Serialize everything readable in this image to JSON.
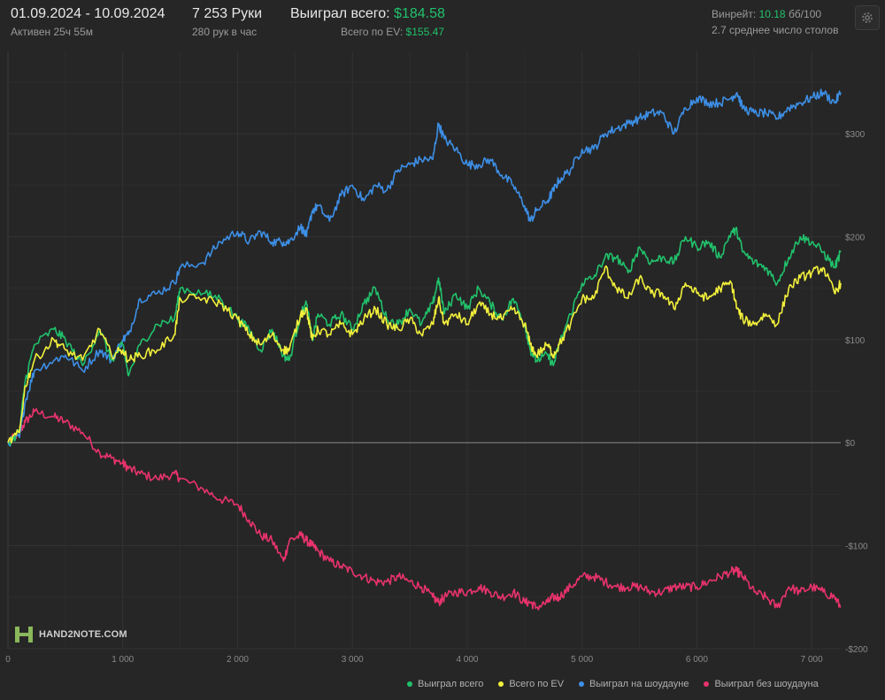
{
  "header": {
    "date_range": "01.09.2024 - 10.09.2024",
    "active_time": "Активен 25ч 55м",
    "hands": "7 253 Руки",
    "hands_per_hour": "280 рук в час",
    "won_label": "Выиграл всего:",
    "won_value": "$184.58",
    "ev_label": "Всего по EV:",
    "ev_value": "$155.47",
    "winrate_label": "Винрейт:",
    "winrate_value": "10.18",
    "winrate_unit": "бб/100",
    "tables": "2.7 среднее число столов"
  },
  "logo": {
    "text": "HAND2NOTE.COM",
    "icon": "h2n-logo-icon"
  },
  "settings_icon": "gear-icon",
  "colors": {
    "total": "#21c16b",
    "ev": "#f2f03b",
    "showdown": "#3d8fe6",
    "non_showdown": "#e8336c",
    "background": "#262626"
  },
  "chart_data": {
    "type": "line",
    "title": "",
    "xlabel": "",
    "ylabel": "",
    "xlim": [
      0,
      7253
    ],
    "ylim": [
      -200,
      380
    ],
    "grid": true,
    "legend_position": "bottom-right",
    "x_ticks": [
      0,
      1000,
      2000,
      3000,
      4000,
      5000,
      6000,
      7000
    ],
    "x_tick_labels": [
      "0",
      "1 000",
      "2 000",
      "3 000",
      "4 000",
      "5 000",
      "6 000",
      "7 000"
    ],
    "y_ticks": [
      300,
      200,
      100,
      0,
      -100,
      -200
    ],
    "y_tick_labels": [
      "$300",
      "$200",
      "$100",
      "$0",
      "-$100",
      "-$200"
    ],
    "series": [
      {
        "name": "Выиграл всего",
        "color": "#21c16b",
        "points": [
          [
            0,
            0
          ],
          [
            100,
            10
          ],
          [
            150,
            60
          ],
          [
            230,
            95
          ],
          [
            400,
            110
          ],
          [
            500,
            100
          ],
          [
            650,
            75
          ],
          [
            800,
            110
          ],
          [
            900,
            80
          ],
          [
            1000,
            95
          ],
          [
            1050,
            65
          ],
          [
            1150,
            95
          ],
          [
            1300,
            115
          ],
          [
            1450,
            120
          ],
          [
            1500,
            150
          ],
          [
            1700,
            145
          ],
          [
            1850,
            140
          ],
          [
            2000,
            120
          ],
          [
            2100,
            110
          ],
          [
            2200,
            90
          ],
          [
            2300,
            110
          ],
          [
            2400,
            85
          ],
          [
            2450,
            80
          ],
          [
            2550,
            125
          ],
          [
            2600,
            135
          ],
          [
            2650,
            100
          ],
          [
            2700,
            125
          ],
          [
            2800,
            115
          ],
          [
            2900,
            125
          ],
          [
            3000,
            110
          ],
          [
            3100,
            135
          ],
          [
            3200,
            150
          ],
          [
            3300,
            120
          ],
          [
            3400,
            115
          ],
          [
            3500,
            130
          ],
          [
            3600,
            115
          ],
          [
            3700,
            135
          ],
          [
            3750,
            160
          ],
          [
            3800,
            125
          ],
          [
            3900,
            145
          ],
          [
            4000,
            130
          ],
          [
            4100,
            150
          ],
          [
            4200,
            135
          ],
          [
            4300,
            120
          ],
          [
            4400,
            140
          ],
          [
            4500,
            115
          ],
          [
            4550,
            90
          ],
          [
            4600,
            80
          ],
          [
            4700,
            85
          ],
          [
            4750,
            75
          ],
          [
            4800,
            95
          ],
          [
            4900,
            125
          ],
          [
            5000,
            155
          ],
          [
            5100,
            160
          ],
          [
            5200,
            180
          ],
          [
            5300,
            180
          ],
          [
            5400,
            165
          ],
          [
            5500,
            190
          ],
          [
            5600,
            175
          ],
          [
            5700,
            180
          ],
          [
            5800,
            175
          ],
          [
            5900,
            200
          ],
          [
            6000,
            190
          ],
          [
            6100,
            195
          ],
          [
            6200,
            180
          ],
          [
            6300,
            205
          ],
          [
            6350,
            205
          ],
          [
            6400,
            185
          ],
          [
            6500,
            175
          ],
          [
            6600,
            170
          ],
          [
            6700,
            155
          ],
          [
            6800,
            180
          ],
          [
            6900,
            200
          ],
          [
            7000,
            195
          ],
          [
            7100,
            185
          ],
          [
            7200,
            170
          ],
          [
            7253,
            185
          ]
        ]
      },
      {
        "name": "Всего по EV",
        "color": "#f2f03b",
        "points": [
          [
            0,
            0
          ],
          [
            100,
            10
          ],
          [
            150,
            55
          ],
          [
            230,
            80
          ],
          [
            400,
            100
          ],
          [
            500,
            90
          ],
          [
            650,
            80
          ],
          [
            800,
            110
          ],
          [
            900,
            85
          ],
          [
            1000,
            90
          ],
          [
            1050,
            80
          ],
          [
            1150,
            85
          ],
          [
            1300,
            90
          ],
          [
            1450,
            105
          ],
          [
            1500,
            140
          ],
          [
            1700,
            140
          ],
          [
            1850,
            135
          ],
          [
            2000,
            120
          ],
          [
            2100,
            105
          ],
          [
            2200,
            95
          ],
          [
            2300,
            105
          ],
          [
            2400,
            90
          ],
          [
            2450,
            90
          ],
          [
            2550,
            125
          ],
          [
            2600,
            130
          ],
          [
            2650,
            100
          ],
          [
            2700,
            110
          ],
          [
            2800,
            105
          ],
          [
            2900,
            115
          ],
          [
            3000,
            105
          ],
          [
            3100,
            120
          ],
          [
            3200,
            130
          ],
          [
            3300,
            115
          ],
          [
            3400,
            110
          ],
          [
            3500,
            120
          ],
          [
            3600,
            105
          ],
          [
            3700,
            115
          ],
          [
            3750,
            140
          ],
          [
            3800,
            115
          ],
          [
            3900,
            125
          ],
          [
            4000,
            115
          ],
          [
            4100,
            135
          ],
          [
            4200,
            125
          ],
          [
            4300,
            120
          ],
          [
            4400,
            130
          ],
          [
            4500,
            115
          ],
          [
            4550,
            95
          ],
          [
            4600,
            85
          ],
          [
            4700,
            95
          ],
          [
            4750,
            85
          ],
          [
            4800,
            95
          ],
          [
            4900,
            115
          ],
          [
            5000,
            140
          ],
          [
            5100,
            140
          ],
          [
            5200,
            170
          ],
          [
            5300,
            150
          ],
          [
            5400,
            140
          ],
          [
            5500,
            160
          ],
          [
            5600,
            145
          ],
          [
            5700,
            145
          ],
          [
            5800,
            130
          ],
          [
            5900,
            155
          ],
          [
            6000,
            145
          ],
          [
            6100,
            140
          ],
          [
            6200,
            150
          ],
          [
            6300,
            155
          ],
          [
            6350,
            130
          ],
          [
            6400,
            120
          ],
          [
            6500,
            115
          ],
          [
            6600,
            125
          ],
          [
            6700,
            115
          ],
          [
            6800,
            150
          ],
          [
            6900,
            160
          ],
          [
            7000,
            165
          ],
          [
            7100,
            170
          ],
          [
            7200,
            145
          ],
          [
            7253,
            155
          ]
        ]
      },
      {
        "name": "Выиграл на шоудауне",
        "color": "#3d8fe6",
        "points": [
          [
            0,
            0
          ],
          [
            100,
            5
          ],
          [
            150,
            40
          ],
          [
            230,
            70
          ],
          [
            400,
            80
          ],
          [
            500,
            85
          ],
          [
            650,
            70
          ],
          [
            800,
            90
          ],
          [
            900,
            80
          ],
          [
            1000,
            100
          ],
          [
            1050,
            105
          ],
          [
            1150,
            140
          ],
          [
            1300,
            145
          ],
          [
            1450,
            155
          ],
          [
            1500,
            170
          ],
          [
            1700,
            175
          ],
          [
            1850,
            195
          ],
          [
            2000,
            205
          ],
          [
            2100,
            195
          ],
          [
            2200,
            205
          ],
          [
            2300,
            195
          ],
          [
            2400,
            195
          ],
          [
            2450,
            195
          ],
          [
            2550,
            210
          ],
          [
            2600,
            200
          ],
          [
            2650,
            225
          ],
          [
            2700,
            230
          ],
          [
            2800,
            215
          ],
          [
            2900,
            240
          ],
          [
            3000,
            250
          ],
          [
            3100,
            235
          ],
          [
            3200,
            250
          ],
          [
            3300,
            245
          ],
          [
            3400,
            265
          ],
          [
            3500,
            270
          ],
          [
            3600,
            275
          ],
          [
            3700,
            275
          ],
          [
            3750,
            310
          ],
          [
            3800,
            295
          ],
          [
            3900,
            285
          ],
          [
            4000,
            270
          ],
          [
            4100,
            270
          ],
          [
            4200,
            275
          ],
          [
            4300,
            260
          ],
          [
            4400,
            250
          ],
          [
            4500,
            230
          ],
          [
            4550,
            215
          ],
          [
            4600,
            225
          ],
          [
            4700,
            235
          ],
          [
            4750,
            245
          ],
          [
            4800,
            255
          ],
          [
            4900,
            265
          ],
          [
            5000,
            285
          ],
          [
            5100,
            285
          ],
          [
            5200,
            300
          ],
          [
            5300,
            305
          ],
          [
            5400,
            310
          ],
          [
            5500,
            315
          ],
          [
            5600,
            320
          ],
          [
            5700,
            320
          ],
          [
            5800,
            300
          ],
          [
            5900,
            325
          ],
          [
            6000,
            335
          ],
          [
            6100,
            330
          ],
          [
            6200,
            330
          ],
          [
            6300,
            335
          ],
          [
            6350,
            340
          ],
          [
            6400,
            325
          ],
          [
            6500,
            320
          ],
          [
            6600,
            320
          ],
          [
            6700,
            315
          ],
          [
            6800,
            325
          ],
          [
            6900,
            330
          ],
          [
            7000,
            335
          ],
          [
            7100,
            340
          ],
          [
            7200,
            330
          ],
          [
            7253,
            340
          ]
        ]
      },
      {
        "name": "Выиграл без шоудауна",
        "color": "#e8336c",
        "points": [
          [
            0,
            0
          ],
          [
            100,
            10
          ],
          [
            150,
            20
          ],
          [
            230,
            30
          ],
          [
            400,
            25
          ],
          [
            500,
            20
          ],
          [
            650,
            10
          ],
          [
            800,
            -10
          ],
          [
            900,
            -15
          ],
          [
            1000,
            -20
          ],
          [
            1050,
            -25
          ],
          [
            1150,
            -30
          ],
          [
            1300,
            -35
          ],
          [
            1450,
            -30
          ],
          [
            1500,
            -35
          ],
          [
            1700,
            -45
          ],
          [
            1850,
            -55
          ],
          [
            2000,
            -60
          ],
          [
            2100,
            -75
          ],
          [
            2200,
            -90
          ],
          [
            2300,
            -95
          ],
          [
            2400,
            -115
          ],
          [
            2450,
            -95
          ],
          [
            2550,
            -90
          ],
          [
            2600,
            -95
          ],
          [
            2650,
            -100
          ],
          [
            2700,
            -105
          ],
          [
            2800,
            -115
          ],
          [
            2900,
            -120
          ],
          [
            3000,
            -125
          ],
          [
            3100,
            -130
          ],
          [
            3200,
            -135
          ],
          [
            3300,
            -135
          ],
          [
            3400,
            -130
          ],
          [
            3500,
            -135
          ],
          [
            3600,
            -140
          ],
          [
            3700,
            -150
          ],
          [
            3750,
            -155
          ],
          [
            3800,
            -150
          ],
          [
            3900,
            -145
          ],
          [
            4000,
            -145
          ],
          [
            4100,
            -140
          ],
          [
            4200,
            -145
          ],
          [
            4300,
            -150
          ],
          [
            4400,
            -145
          ],
          [
            4500,
            -155
          ],
          [
            4550,
            -155
          ],
          [
            4600,
            -160
          ],
          [
            4700,
            -155
          ],
          [
            4750,
            -150
          ],
          [
            4800,
            -150
          ],
          [
            4900,
            -140
          ],
          [
            5000,
            -130
          ],
          [
            5100,
            -130
          ],
          [
            5200,
            -135
          ],
          [
            5300,
            -140
          ],
          [
            5400,
            -140
          ],
          [
            5500,
            -140
          ],
          [
            5600,
            -145
          ],
          [
            5700,
            -145
          ],
          [
            5800,
            -140
          ],
          [
            5900,
            -140
          ],
          [
            6000,
            -140
          ],
          [
            6100,
            -135
          ],
          [
            6200,
            -130
          ],
          [
            6300,
            -125
          ],
          [
            6350,
            -125
          ],
          [
            6400,
            -130
          ],
          [
            6500,
            -145
          ],
          [
            6600,
            -150
          ],
          [
            6700,
            -160
          ],
          [
            6800,
            -140
          ],
          [
            6900,
            -145
          ],
          [
            7000,
            -140
          ],
          [
            7100,
            -145
          ],
          [
            7200,
            -150
          ],
          [
            7253,
            -160
          ]
        ]
      }
    ]
  }
}
